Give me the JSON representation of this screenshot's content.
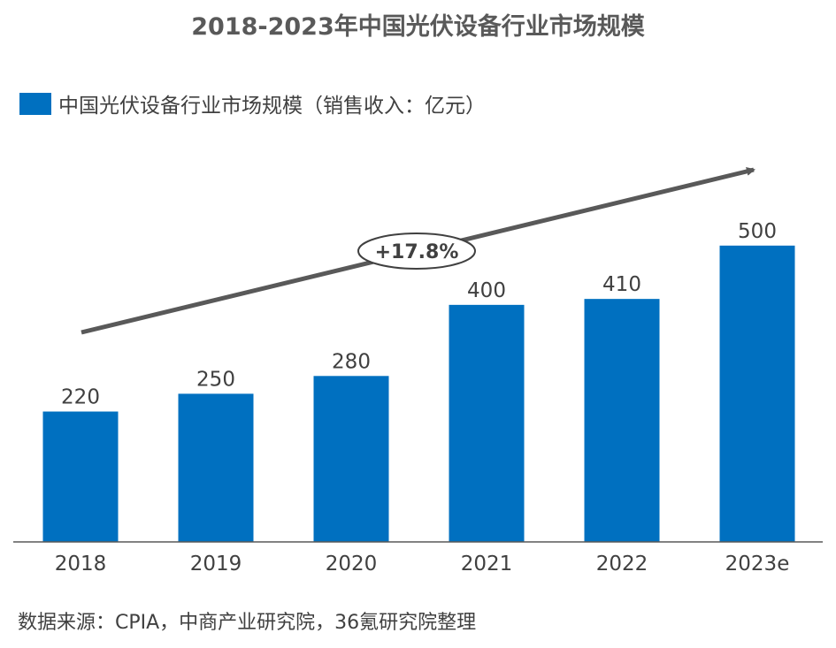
{
  "chart_data": {
    "type": "bar",
    "title": "2018-2023年中国光伏设备行业市场规模",
    "categories": [
      "2018",
      "2019",
      "2020",
      "2021",
      "2022",
      "2023e"
    ],
    "series": [
      {
        "name": "中国光伏设备行业市场规模（销售收入：亿元）",
        "values": [
          220,
          250,
          280,
          400,
          410,
          500
        ]
      }
    ],
    "data_labels": [
      "220",
      "250",
      "280",
      "400",
      "410",
      "500"
    ],
    "ylim": [
      0,
      540
    ],
    "grid": false,
    "legend": "top-left",
    "annotation": "+17.8%",
    "bar_color": "#0070c0",
    "arrow_color": "#595959"
  },
  "source": "数据来源：CPIA，中商产业研究院，36氪研究院整理"
}
